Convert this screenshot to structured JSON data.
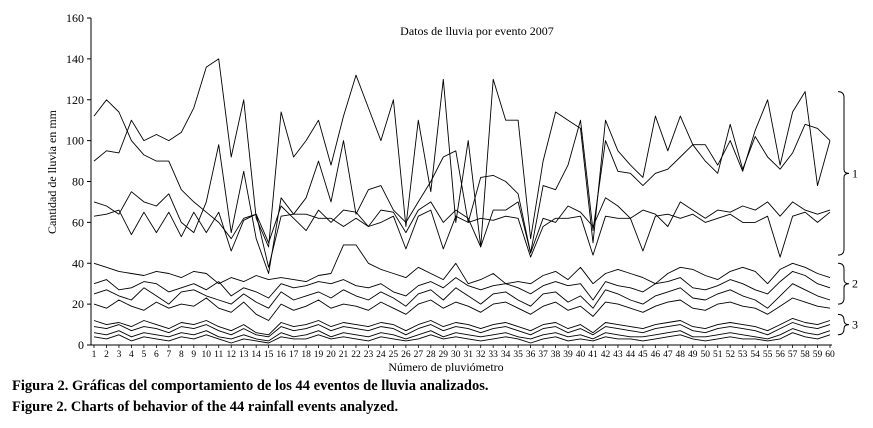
{
  "chart_data": {
    "type": "line",
    "title": "Datos de lluvia por evento 2007",
    "xlabel": "Número de pluviómetro",
    "ylabel": "Cantidad de lluvia en mm",
    "x": [
      1,
      2,
      3,
      4,
      5,
      6,
      7,
      8,
      9,
      10,
      11,
      12,
      13,
      14,
      15,
      16,
      17,
      18,
      19,
      20,
      21,
      22,
      23,
      24,
      25,
      26,
      27,
      28,
      29,
      30,
      31,
      32,
      33,
      34,
      35,
      36,
      37,
      38,
      39,
      40,
      41,
      42,
      43,
      44,
      45,
      46,
      47,
      48,
      49,
      50,
      51,
      52,
      53,
      54,
      55,
      56,
      57,
      58,
      59,
      60
    ],
    "ylim": [
      0,
      160
    ],
    "yticks": [
      0,
      20,
      40,
      60,
      80,
      100,
      120,
      140,
      160
    ],
    "grid": false,
    "legend": "none",
    "group_labels": [
      "1",
      "2",
      "3"
    ],
    "group_ranges": [
      [
        44,
        124
      ],
      [
        20,
        40
      ],
      [
        5,
        15
      ]
    ],
    "series": [
      {
        "values": [
          112,
          120,
          114,
          100,
          93,
          90,
          90,
          76,
          70,
          65,
          60,
          52,
          62,
          64,
          50,
          68,
          62,
          56,
          66,
          60,
          66,
          65,
          58,
          66,
          65,
          55,
          66,
          70,
          60,
          66,
          62,
          48,
          66,
          66,
          70,
          45,
          62,
          60,
          68,
          65,
          58,
          72,
          68,
          62,
          66,
          64,
          58,
          70,
          66,
          62,
          66,
          65,
          68,
          66,
          70,
          63,
          70,
          66,
          64,
          66
        ]
      },
      {
        "values": [
          90,
          95,
          94,
          110,
          100,
          103,
          100,
          104,
          116,
          136,
          140,
          92,
          120,
          62,
          48,
          114,
          92,
          100,
          110,
          88,
          112,
          132,
          116,
          100,
          120,
          58,
          110,
          75,
          130,
          60,
          100,
          48,
          130,
          110,
          110,
          52,
          90,
          114,
          110,
          106,
          50,
          110,
          95,
          88,
          82,
          112,
          95,
          112,
          98,
          98,
          88,
          100,
          85,
          105,
          120,
          88,
          114,
          124,
          78,
          100
        ]
      },
      {
        "values": [
          70,
          68,
          64,
          75,
          70,
          68,
          74,
          60,
          55,
          70,
          98,
          55,
          85,
          52,
          35,
          72,
          64,
          72,
          90,
          70,
          100,
          64,
          76,
          78,
          66,
          60,
          70,
          80,
          92,
          95,
          60,
          82,
          83,
          80,
          74,
          45,
          78,
          76,
          88,
          110,
          56,
          100,
          85,
          84,
          78,
          84,
          86,
          92,
          98,
          90,
          84,
          108,
          86,
          102,
          92,
          86,
          94,
          108,
          106,
          100
        ]
      },
      {
        "values": [
          63,
          64,
          66,
          54,
          65,
          55,
          65,
          53,
          65,
          55,
          65,
          46,
          61,
          64,
          38,
          63,
          64,
          64,
          62,
          62,
          58,
          62,
          58,
          60,
          63,
          47,
          63,
          66,
          47,
          63,
          60,
          62,
          61,
          63,
          62,
          43,
          58,
          62,
          62,
          63,
          44,
          63,
          62,
          62,
          46,
          63,
          64,
          62,
          64,
          60,
          62,
          64,
          60,
          60,
          63,
          43,
          63,
          65,
          60,
          65
        ]
      },
      {
        "values": [
          40,
          38,
          36,
          35,
          34,
          36,
          35,
          33,
          36,
          35,
          30,
          33,
          31,
          34,
          32,
          33,
          32,
          31,
          34,
          35,
          49,
          49,
          40,
          37,
          35,
          33,
          38,
          35,
          32,
          40,
          30,
          32,
          35,
          30,
          31,
          30,
          34,
          36,
          32,
          38,
          30,
          35,
          37,
          35,
          33,
          30,
          35,
          38,
          37,
          34,
          32,
          36,
          38,
          36,
          30,
          37,
          40,
          38,
          35,
          33
        ]
      },
      {
        "values": [
          30,
          32,
          27,
          28,
          31,
          30,
          26,
          28,
          30,
          27,
          31,
          24,
          28,
          26,
          23,
          30,
          28,
          29,
          31,
          30,
          32,
          29,
          28,
          30,
          26,
          24,
          29,
          31,
          28,
          33,
          29,
          27,
          29,
          30,
          28,
          25,
          29,
          31,
          29,
          30,
          22,
          31,
          29,
          28,
          26,
          30,
          31,
          33,
          28,
          27,
          29,
          32,
          30,
          27,
          25,
          31,
          36,
          34,
          30,
          28
        ]
      },
      {
        "values": [
          25,
          27,
          24,
          22,
          28,
          24,
          20,
          26,
          27,
          24,
          22,
          20,
          25,
          21,
          18,
          26,
          22,
          24,
          26,
          23,
          27,
          24,
          22,
          26,
          23,
          19,
          25,
          27,
          22,
          28,
          24,
          20,
          25,
          26,
          22,
          19,
          25,
          26,
          21,
          24,
          18,
          27,
          25,
          22,
          20,
          24,
          26,
          28,
          23,
          22,
          25,
          27,
          24,
          22,
          18,
          24,
          30,
          27,
          24,
          22
        ]
      },
      {
        "values": [
          20,
          18,
          22,
          19,
          17,
          21,
          18,
          20,
          19,
          23,
          18,
          16,
          21,
          15,
          12,
          20,
          17,
          19,
          22,
          18,
          20,
          19,
          17,
          21,
          18,
          15,
          20,
          22,
          18,
          21,
          19,
          16,
          20,
          21,
          18,
          15,
          19,
          21,
          17,
          19,
          14,
          21,
          20,
          18,
          16,
          19,
          21,
          22,
          18,
          17,
          20,
          21,
          19,
          18,
          15,
          19,
          23,
          21,
          19,
          18
        ]
      },
      {
        "values": [
          12,
          10,
          11,
          9,
          12,
          10,
          8,
          11,
          10,
          12,
          9,
          7,
          10,
          6,
          5,
          11,
          9,
          10,
          12,
          9,
          11,
          10,
          9,
          11,
          10,
          7,
          10,
          12,
          9,
          11,
          10,
          8,
          10,
          11,
          9,
          7,
          10,
          11,
          8,
          10,
          6,
          11,
          10,
          9,
          8,
          10,
          11,
          12,
          9,
          8,
          10,
          11,
          10,
          9,
          7,
          10,
          13,
          11,
          10,
          12
        ]
      },
      {
        "values": [
          9,
          8,
          10,
          7,
          9,
          8,
          6,
          9,
          8,
          10,
          7,
          5,
          8,
          5,
          4,
          9,
          7,
          8,
          10,
          7,
          9,
          8,
          7,
          9,
          8,
          5,
          8,
          10,
          7,
          9,
          8,
          6,
          8,
          9,
          7,
          5,
          8,
          9,
          6,
          8,
          5,
          9,
          8,
          7,
          6,
          8,
          9,
          10,
          7,
          6,
          8,
          9,
          8,
          7,
          5,
          8,
          11,
          9,
          8,
          10
        ]
      },
      {
        "values": [
          6,
          5,
          7,
          4,
          6,
          5,
          4,
          6,
          5,
          7,
          4,
          3,
          5,
          3,
          2,
          6,
          4,
          5,
          7,
          4,
          6,
          5,
          4,
          6,
          5,
          3,
          5,
          7,
          4,
          6,
          5,
          4,
          5,
          6,
          4,
          3,
          5,
          6,
          4,
          5,
          3,
          6,
          5,
          4,
          4,
          5,
          6,
          7,
          4,
          4,
          5,
          6,
          5,
          4,
          3,
          5,
          8,
          6,
          5,
          7
        ]
      },
      {
        "values": [
          4,
          3,
          5,
          2,
          4,
          3,
          2,
          4,
          3,
          5,
          3,
          1,
          3,
          2,
          1,
          4,
          3,
          3,
          5,
          3,
          4,
          3,
          2,
          4,
          3,
          2,
          3,
          5,
          3,
          4,
          3,
          2,
          3,
          4,
          3,
          1,
          3,
          4,
          2,
          3,
          2,
          4,
          3,
          3,
          2,
          3,
          4,
          5,
          3,
          2,
          3,
          4,
          3,
          3,
          2,
          3,
          6,
          4,
          3,
          5
        ]
      }
    ]
  },
  "caption": {
    "es": "Figura 2. Gráficas del comportamiento de los 44 eventos de lluvia analizados.",
    "en": "Figure 2. Charts of behavior of the 44 rainfall events analyzed."
  }
}
